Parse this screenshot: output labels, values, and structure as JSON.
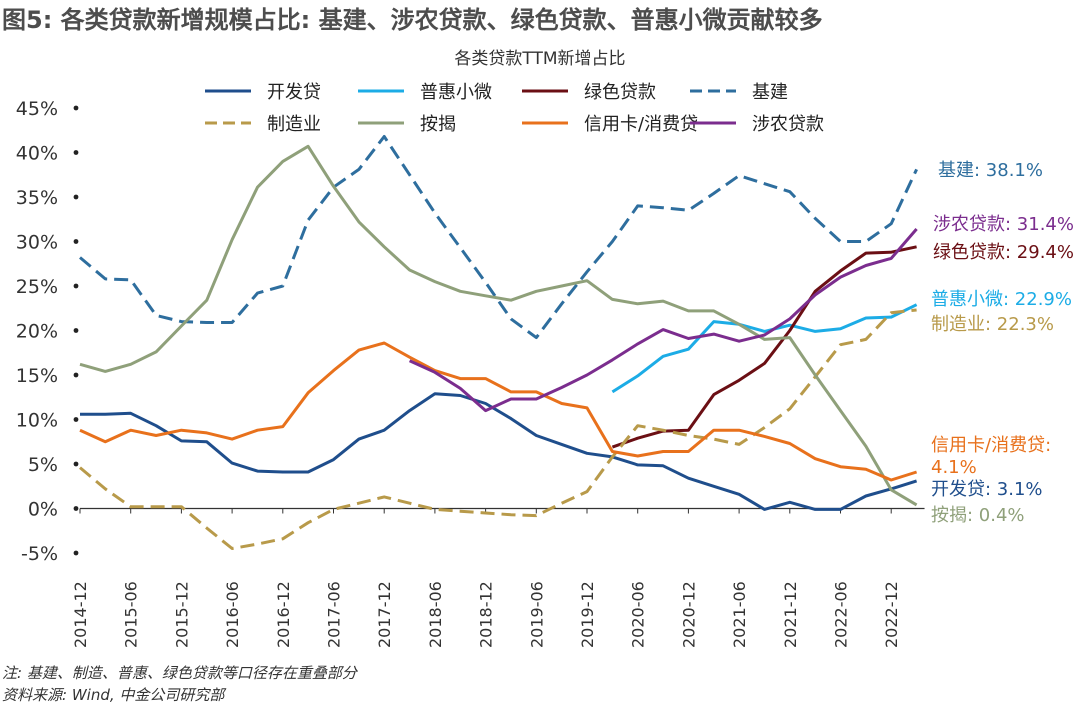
{
  "header": {
    "title": "图5: 各类贷款新增规模占比: 基建、涉农贷款、绿色贷款、普惠小微贡献较多",
    "subtitle": "各类贷款TTM新增占比"
  },
  "footer": {
    "note": "注: 基建、制造、普惠、绿色贷款等口径存在重叠部分",
    "source": "资料来源: Wind, 中金公司研究部"
  },
  "chart_data": {
    "type": "line",
    "title": "各类贷款TTM新增占比",
    "ylim": [
      -5,
      45
    ],
    "y_ticks": [
      -5,
      0,
      5,
      10,
      15,
      20,
      25,
      30,
      35,
      40,
      45
    ],
    "y_tick_labels": [
      "-5%",
      "0%",
      "5%",
      "10%",
      "15%",
      "20%",
      "25%",
      "30%",
      "35%",
      "40%",
      "45%"
    ],
    "x": [
      "2014-12",
      "2015-03",
      "2015-06",
      "2015-09",
      "2015-12",
      "2016-03",
      "2016-06",
      "2016-09",
      "2016-12",
      "2017-03",
      "2017-06",
      "2017-09",
      "2017-12",
      "2018-03",
      "2018-06",
      "2018-09",
      "2018-12",
      "2019-03",
      "2019-06",
      "2019-09",
      "2019-12",
      "2020-03",
      "2020-06",
      "2020-09",
      "2020-12",
      "2021-03",
      "2021-06",
      "2021-09",
      "2021-12",
      "2022-03",
      "2022-06",
      "2022-09",
      "2022-12",
      "2023-03"
    ],
    "x_tick_labels": [
      "2014-12",
      "2015-06",
      "2015-12",
      "2016-06",
      "2016-12",
      "2017-06",
      "2017-12",
      "2018-06",
      "2018-12",
      "2019-06",
      "2019-12",
      "2020-06",
      "2020-12",
      "2021-06",
      "2021-12",
      "2022-06",
      "2022-12"
    ],
    "legend_position": "top",
    "series": [
      {
        "name": "开发贷",
        "color": "#1f4e8c",
        "dash": "solid",
        "end_label": "开发贷: 3.1%",
        "values": [
          10.6,
          10.6,
          10.7,
          9.3,
          7.6,
          7.5,
          5.1,
          4.2,
          4.1,
          4.1,
          5.5,
          7.8,
          8.8,
          11.0,
          12.9,
          12.7,
          11.8,
          10.1,
          8.2,
          7.2,
          6.2,
          5.8,
          4.9,
          4.8,
          3.4,
          2.5,
          1.6,
          -0.1,
          0.7,
          -0.1,
          -0.1,
          1.4,
          2.2,
          3.1
        ]
      },
      {
        "name": "普惠小微",
        "color": "#1cace6",
        "dash": "solid",
        "end_label": "普惠小微: 22.9%",
        "values": [
          null,
          null,
          null,
          null,
          null,
          null,
          null,
          null,
          null,
          null,
          null,
          null,
          null,
          null,
          null,
          null,
          null,
          null,
          null,
          null,
          null,
          13.1,
          14.9,
          17.1,
          17.9,
          21.0,
          20.7,
          19.9,
          20.6,
          19.9,
          20.2,
          21.4,
          21.5,
          22.9
        ]
      },
      {
        "name": "绿色贷款",
        "color": "#6b0f14",
        "dash": "solid",
        "end_label": "绿色贷款: 29.4%",
        "values": [
          null,
          null,
          null,
          null,
          null,
          null,
          null,
          null,
          null,
          null,
          null,
          null,
          null,
          null,
          null,
          null,
          null,
          null,
          null,
          null,
          null,
          6.9,
          7.9,
          8.7,
          8.8,
          12.8,
          14.4,
          16.3,
          20.0,
          24.4,
          26.7,
          28.7,
          28.8,
          29.4
        ]
      },
      {
        "name": "基建",
        "color": "#2e6e9e",
        "dash": "dashed",
        "end_label": "基建: 38.1%",
        "values": [
          28.2,
          25.8,
          25.7,
          21.7,
          21.0,
          20.9,
          20.9,
          24.2,
          25.0,
          32.4,
          36.1,
          38.1,
          41.8,
          37.5,
          33.2,
          29.3,
          25.4,
          21.3,
          19.2,
          23.0,
          26.6,
          30.0,
          34.0,
          33.8,
          33.5,
          35.4,
          37.4,
          36.5,
          35.6,
          32.6,
          30.0,
          30.0,
          32.0,
          38.1
        ]
      },
      {
        "name": "制造业",
        "color": "#b89a4a",
        "dash": "dashed",
        "end_label": "制造业: 22.3%",
        "values": [
          4.6,
          2.2,
          0.2,
          0.2,
          0.2,
          -2.2,
          -4.5,
          -4.0,
          -3.4,
          -1.6,
          -0.1,
          0.6,
          1.3,
          0.6,
          -0.1,
          -0.3,
          -0.5,
          -0.7,
          -0.8,
          0.6,
          1.9,
          5.8,
          9.3,
          8.8,
          8.2,
          7.8,
          7.2,
          9.1,
          11.2,
          14.8,
          18.4,
          19.0,
          22.0,
          22.3
        ]
      },
      {
        "name": "按揭",
        "color": "#8fa07a",
        "dash": "solid",
        "end_label": "按揭: 0.4%",
        "values": [
          16.2,
          15.4,
          16.2,
          17.6,
          20.5,
          23.4,
          30.2,
          36.1,
          39.0,
          40.7,
          36.2,
          32.2,
          29.4,
          26.8,
          25.5,
          24.4,
          23.9,
          23.4,
          24.4,
          25.0,
          25.6,
          23.5,
          23.0,
          23.3,
          22.2,
          22.2,
          20.7,
          19.0,
          19.2,
          15.0,
          11.0,
          7.0,
          2.1,
          0.4
        ]
      },
      {
        "name": "信用卡/消费贷",
        "color": "#e8711c",
        "dash": "solid",
        "end_label": "信用卡/消费贷: 4.1%",
        "values": [
          8.8,
          7.5,
          8.8,
          8.2,
          8.8,
          8.5,
          7.8,
          8.8,
          9.2,
          13.0,
          15.5,
          17.8,
          18.6,
          17.0,
          15.5,
          14.6,
          14.6,
          13.1,
          13.1,
          11.8,
          11.3,
          6.4,
          5.9,
          6.4,
          6.4,
          8.8,
          8.8,
          8.1,
          7.3,
          5.6,
          4.7,
          4.4,
          3.2,
          4.1
        ]
      },
      {
        "name": "涉农贷款",
        "color": "#7b2d8e",
        "dash": "solid",
        "end_label": "涉农贷款: 31.4%",
        "values": [
          null,
          null,
          null,
          null,
          null,
          null,
          null,
          null,
          null,
          null,
          null,
          null,
          null,
          16.6,
          15.3,
          13.5,
          11.0,
          12.3,
          12.3,
          13.6,
          15.0,
          16.7,
          18.5,
          20.1,
          19.1,
          19.6,
          18.8,
          19.5,
          21.3,
          24.0,
          26.0,
          27.3,
          28.1,
          31.4
        ]
      }
    ]
  }
}
